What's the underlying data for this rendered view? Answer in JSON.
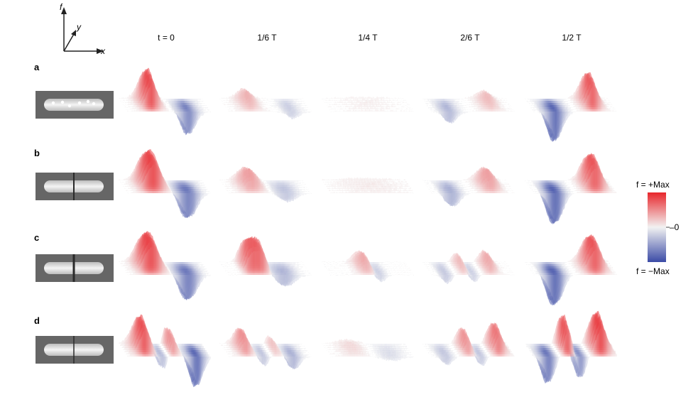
{
  "axes_glyph": {
    "f_label": "f",
    "y_label": "y",
    "x_label": "x"
  },
  "columns": [
    {
      "label": "t = 0"
    },
    {
      "label": "1/6 T"
    },
    {
      "label": "1/4 T"
    },
    {
      "label": "2/6 T"
    },
    {
      "label": "1/2 T"
    }
  ],
  "rows": [
    {
      "label": "a",
      "thumbnail_style": "rod-dots",
      "panels": [
        {
          "peaks": [
            {
              "at": 0.3,
              "amp": 0.95,
              "w": 0.07,
              "sharp": 1.2
            },
            {
              "at": 0.75,
              "amp": -0.75,
              "w": 0.07,
              "sharp": 1.2
            }
          ]
        },
        {
          "peaks": [
            {
              "at": 0.28,
              "amp": 0.35,
              "w": 0.08,
              "sharp": 1.2
            },
            {
              "at": 0.78,
              "amp": -0.25,
              "w": 0.07,
              "sharp": 1.2
            }
          ]
        },
        {
          "peaks": [
            {
              "at": 0.5,
              "amp": 0.06,
              "w": 0.25,
              "sharp": 1.0
            }
          ]
        },
        {
          "peaks": [
            {
              "at": 0.24,
              "amp": -0.4,
              "w": 0.07,
              "sharp": 1.2
            },
            {
              "at": 0.72,
              "amp": 0.3,
              "w": 0.08,
              "sharp": 1.2
            }
          ]
        },
        {
          "peaks": [
            {
              "at": 0.28,
              "amp": -0.95,
              "w": 0.07,
              "sharp": 1.2
            },
            {
              "at": 0.72,
              "amp": 0.85,
              "w": 0.07,
              "sharp": 1.2
            }
          ]
        }
      ]
    },
    {
      "label": "b",
      "thumbnail_style": "rod-gap",
      "panels": [
        {
          "peaks": [
            {
              "at": 0.32,
              "amp": 0.95,
              "w": 0.1,
              "sharp": 1.0
            },
            {
              "at": 0.75,
              "amp": -0.8,
              "w": 0.09,
              "sharp": 1.0
            }
          ]
        },
        {
          "peaks": [
            {
              "at": 0.3,
              "amp": 0.45,
              "w": 0.1,
              "sharp": 1.0
            },
            {
              "at": 0.72,
              "amp": -0.3,
              "w": 0.1,
              "sharp": 1.0
            }
          ]
        },
        {
          "peaks": [
            {
              "at": 0.5,
              "amp": 0.08,
              "w": 0.3,
              "sharp": 1.0
            }
          ]
        },
        {
          "peaks": [
            {
              "at": 0.27,
              "amp": -0.45,
              "w": 0.08,
              "sharp": 1.0
            },
            {
              "at": 0.72,
              "amp": 0.45,
              "w": 0.09,
              "sharp": 1.0
            }
          ]
        },
        {
          "peaks": [
            {
              "at": 0.28,
              "amp": -0.95,
              "w": 0.08,
              "sharp": 1.0
            },
            {
              "at": 0.75,
              "amp": 0.85,
              "w": 0.09,
              "sharp": 1.0
            }
          ]
        }
      ]
    },
    {
      "label": "c",
      "thumbnail_style": "rod-gap-dark",
      "panels": [
        {
          "peaks": [
            {
              "at": 0.3,
              "amp": 0.95,
              "w": 0.1,
              "sharp": 1.0
            },
            {
              "at": 0.75,
              "amp": -0.8,
              "w": 0.09,
              "sharp": 1.0
            }
          ]
        },
        {
          "peaks": [
            {
              "at": 0.35,
              "amp": 0.8,
              "w": 0.12,
              "sharp": 0.6
            },
            {
              "at": 0.7,
              "amp": -0.4,
              "w": 0.1,
              "sharp": 1.0
            }
          ]
        },
        {
          "peaks": [
            {
              "at": 0.45,
              "amp": 0.4,
              "w": 0.08,
              "sharp": 1.0
            },
            {
              "at": 0.6,
              "amp": -0.3,
              "w": 0.06,
              "sharp": 1.0
            }
          ]
        },
        {
          "peaks": [
            {
              "at": 0.2,
              "amp": -0.3,
              "w": 0.05,
              "sharp": 1.2
            },
            {
              "at": 0.4,
              "amp": 0.35,
              "w": 0.05,
              "sharp": 1.2
            },
            {
              "at": 0.52,
              "amp": -0.3,
              "w": 0.05,
              "sharp": 1.2
            },
            {
              "at": 0.72,
              "amp": 0.4,
              "w": 0.06,
              "sharp": 1.2
            }
          ]
        },
        {
          "peaks": [
            {
              "at": 0.28,
              "amp": -0.95,
              "w": 0.08,
              "sharp": 1.0
            },
            {
              "at": 0.75,
              "amp": 0.85,
              "w": 0.09,
              "sharp": 1.0
            }
          ]
        }
      ]
    },
    {
      "label": "d",
      "thumbnail_style": "rod-gap-thin",
      "panels": [
        {
          "peaks": [
            {
              "at": 0.22,
              "amp": 0.9,
              "w": 0.07,
              "sharp": 1.2
            },
            {
              "at": 0.45,
              "amp": -0.55,
              "w": 0.05,
              "sharp": 1.2
            },
            {
              "at": 0.55,
              "amp": 0.65,
              "w": 0.05,
              "sharp": 1.2
            },
            {
              "at": 0.85,
              "amp": -0.95,
              "w": 0.06,
              "sharp": 1.2
            }
          ]
        },
        {
          "peaks": [
            {
              "at": 0.22,
              "amp": 0.55,
              "w": 0.06,
              "sharp": 1.2
            },
            {
              "at": 0.45,
              "amp": -0.35,
              "w": 0.05,
              "sharp": 1.2
            },
            {
              "at": 0.58,
              "amp": 0.3,
              "w": 0.05,
              "sharp": 1.2
            },
            {
              "at": 0.8,
              "amp": -0.45,
              "w": 0.06,
              "sharp": 1.2
            }
          ]
        },
        {
          "peaks": [
            {
              "at": 0.3,
              "amp": 0.15,
              "w": 0.12,
              "sharp": 1.0
            },
            {
              "at": 0.75,
              "amp": -0.15,
              "w": 0.12,
              "sharp": 1.0
            }
          ]
        },
        {
          "peaks": [
            {
              "at": 0.2,
              "amp": -0.3,
              "w": 0.06,
              "sharp": 1.2
            },
            {
              "at": 0.45,
              "amp": 0.55,
              "w": 0.05,
              "sharp": 1.2
            },
            {
              "at": 0.62,
              "amp": -0.35,
              "w": 0.05,
              "sharp": 1.2
            },
            {
              "at": 0.82,
              "amp": 0.7,
              "w": 0.06,
              "sharp": 1.2
            }
          ]
        },
        {
          "peaks": [
            {
              "at": 0.2,
              "amp": -0.85,
              "w": 0.06,
              "sharp": 1.2
            },
            {
              "at": 0.42,
              "amp": 0.95,
              "w": 0.05,
              "sharp": 1.2
            },
            {
              "at": 0.58,
              "amp": -0.75,
              "w": 0.05,
              "sharp": 1.2
            },
            {
              "at": 0.82,
              "amp": 1.0,
              "w": 0.07,
              "sharp": 1.2
            }
          ]
        }
      ]
    }
  ],
  "colorbar": {
    "top_label": "f = +Max",
    "mid_label": "–0",
    "bottom_label": "f = −Max",
    "color_positive": "#e8262b",
    "color_zero": "#f2f2f2",
    "color_negative": "#3b4ba6"
  }
}
